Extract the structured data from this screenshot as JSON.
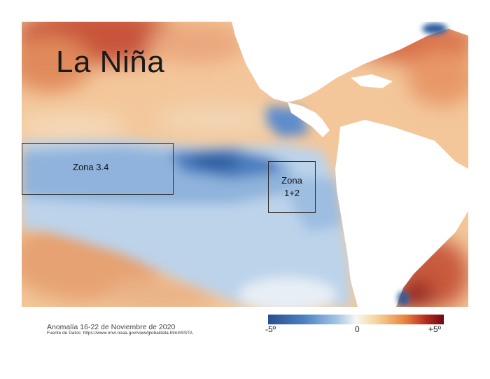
{
  "title": "La Niña",
  "zones": {
    "zone34": "Zona 3.4",
    "zone12_line1": "Zona",
    "zone12_line2": "1+2"
  },
  "caption": "Anomalía 16-22 de Noviembre de 2020",
  "source": "Fuente de Datos: https://www.nnvl.noaa.gov/view/globaldata.html#SSTA.",
  "colorbar": {
    "min_label": "-5º",
    "mid_label": "0",
    "max_label": "+5º",
    "colors": [
      "#2a4f8f",
      "#4a7fc0",
      "#a9c8e8",
      "#f7f7f2",
      "#f6d39a",
      "#e8843f",
      "#b52a1f",
      "#6b0a12"
    ]
  }
}
